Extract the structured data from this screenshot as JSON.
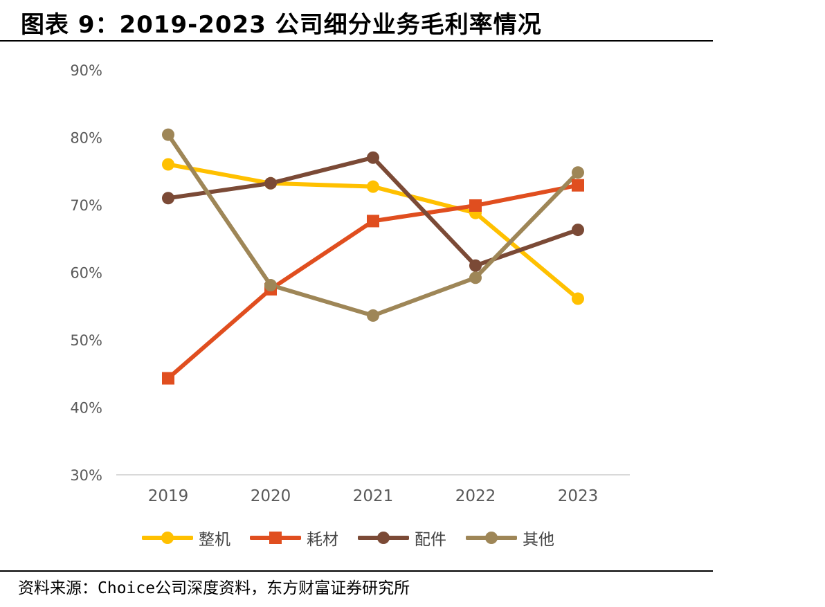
{
  "title": "图表 9：2019-2023 公司细分业务毛利率情况",
  "source": "资料来源：Choice公司深度资料，东方财富证券研究所",
  "chart_data": {
    "type": "line",
    "categories": [
      "2019",
      "2020",
      "2021",
      "2022",
      "2023"
    ],
    "y_ticks": [
      "30%",
      "40%",
      "50%",
      "60%",
      "70%",
      "80%",
      "90%"
    ],
    "ylim": [
      30,
      90
    ],
    "grid": false,
    "legend_position": "bottom",
    "series": [
      {
        "name": "整机",
        "color": "#FFC000",
        "marker": "circle",
        "values": [
          76.0,
          73.2,
          72.7,
          68.8,
          56.1
        ]
      },
      {
        "name": "耗材",
        "color": "#E04E1F",
        "marker": "square",
        "values": [
          44.3,
          57.5,
          67.6,
          69.9,
          72.9
        ]
      },
      {
        "name": "配件",
        "color": "#7B4A36",
        "marker": "circle",
        "values": [
          71.0,
          73.2,
          77.0,
          61.0,
          66.3
        ]
      },
      {
        "name": "其他",
        "color": "#9E8657",
        "marker": "circle",
        "values": [
          80.4,
          58.1,
          53.6,
          59.2,
          74.8
        ]
      }
    ]
  }
}
